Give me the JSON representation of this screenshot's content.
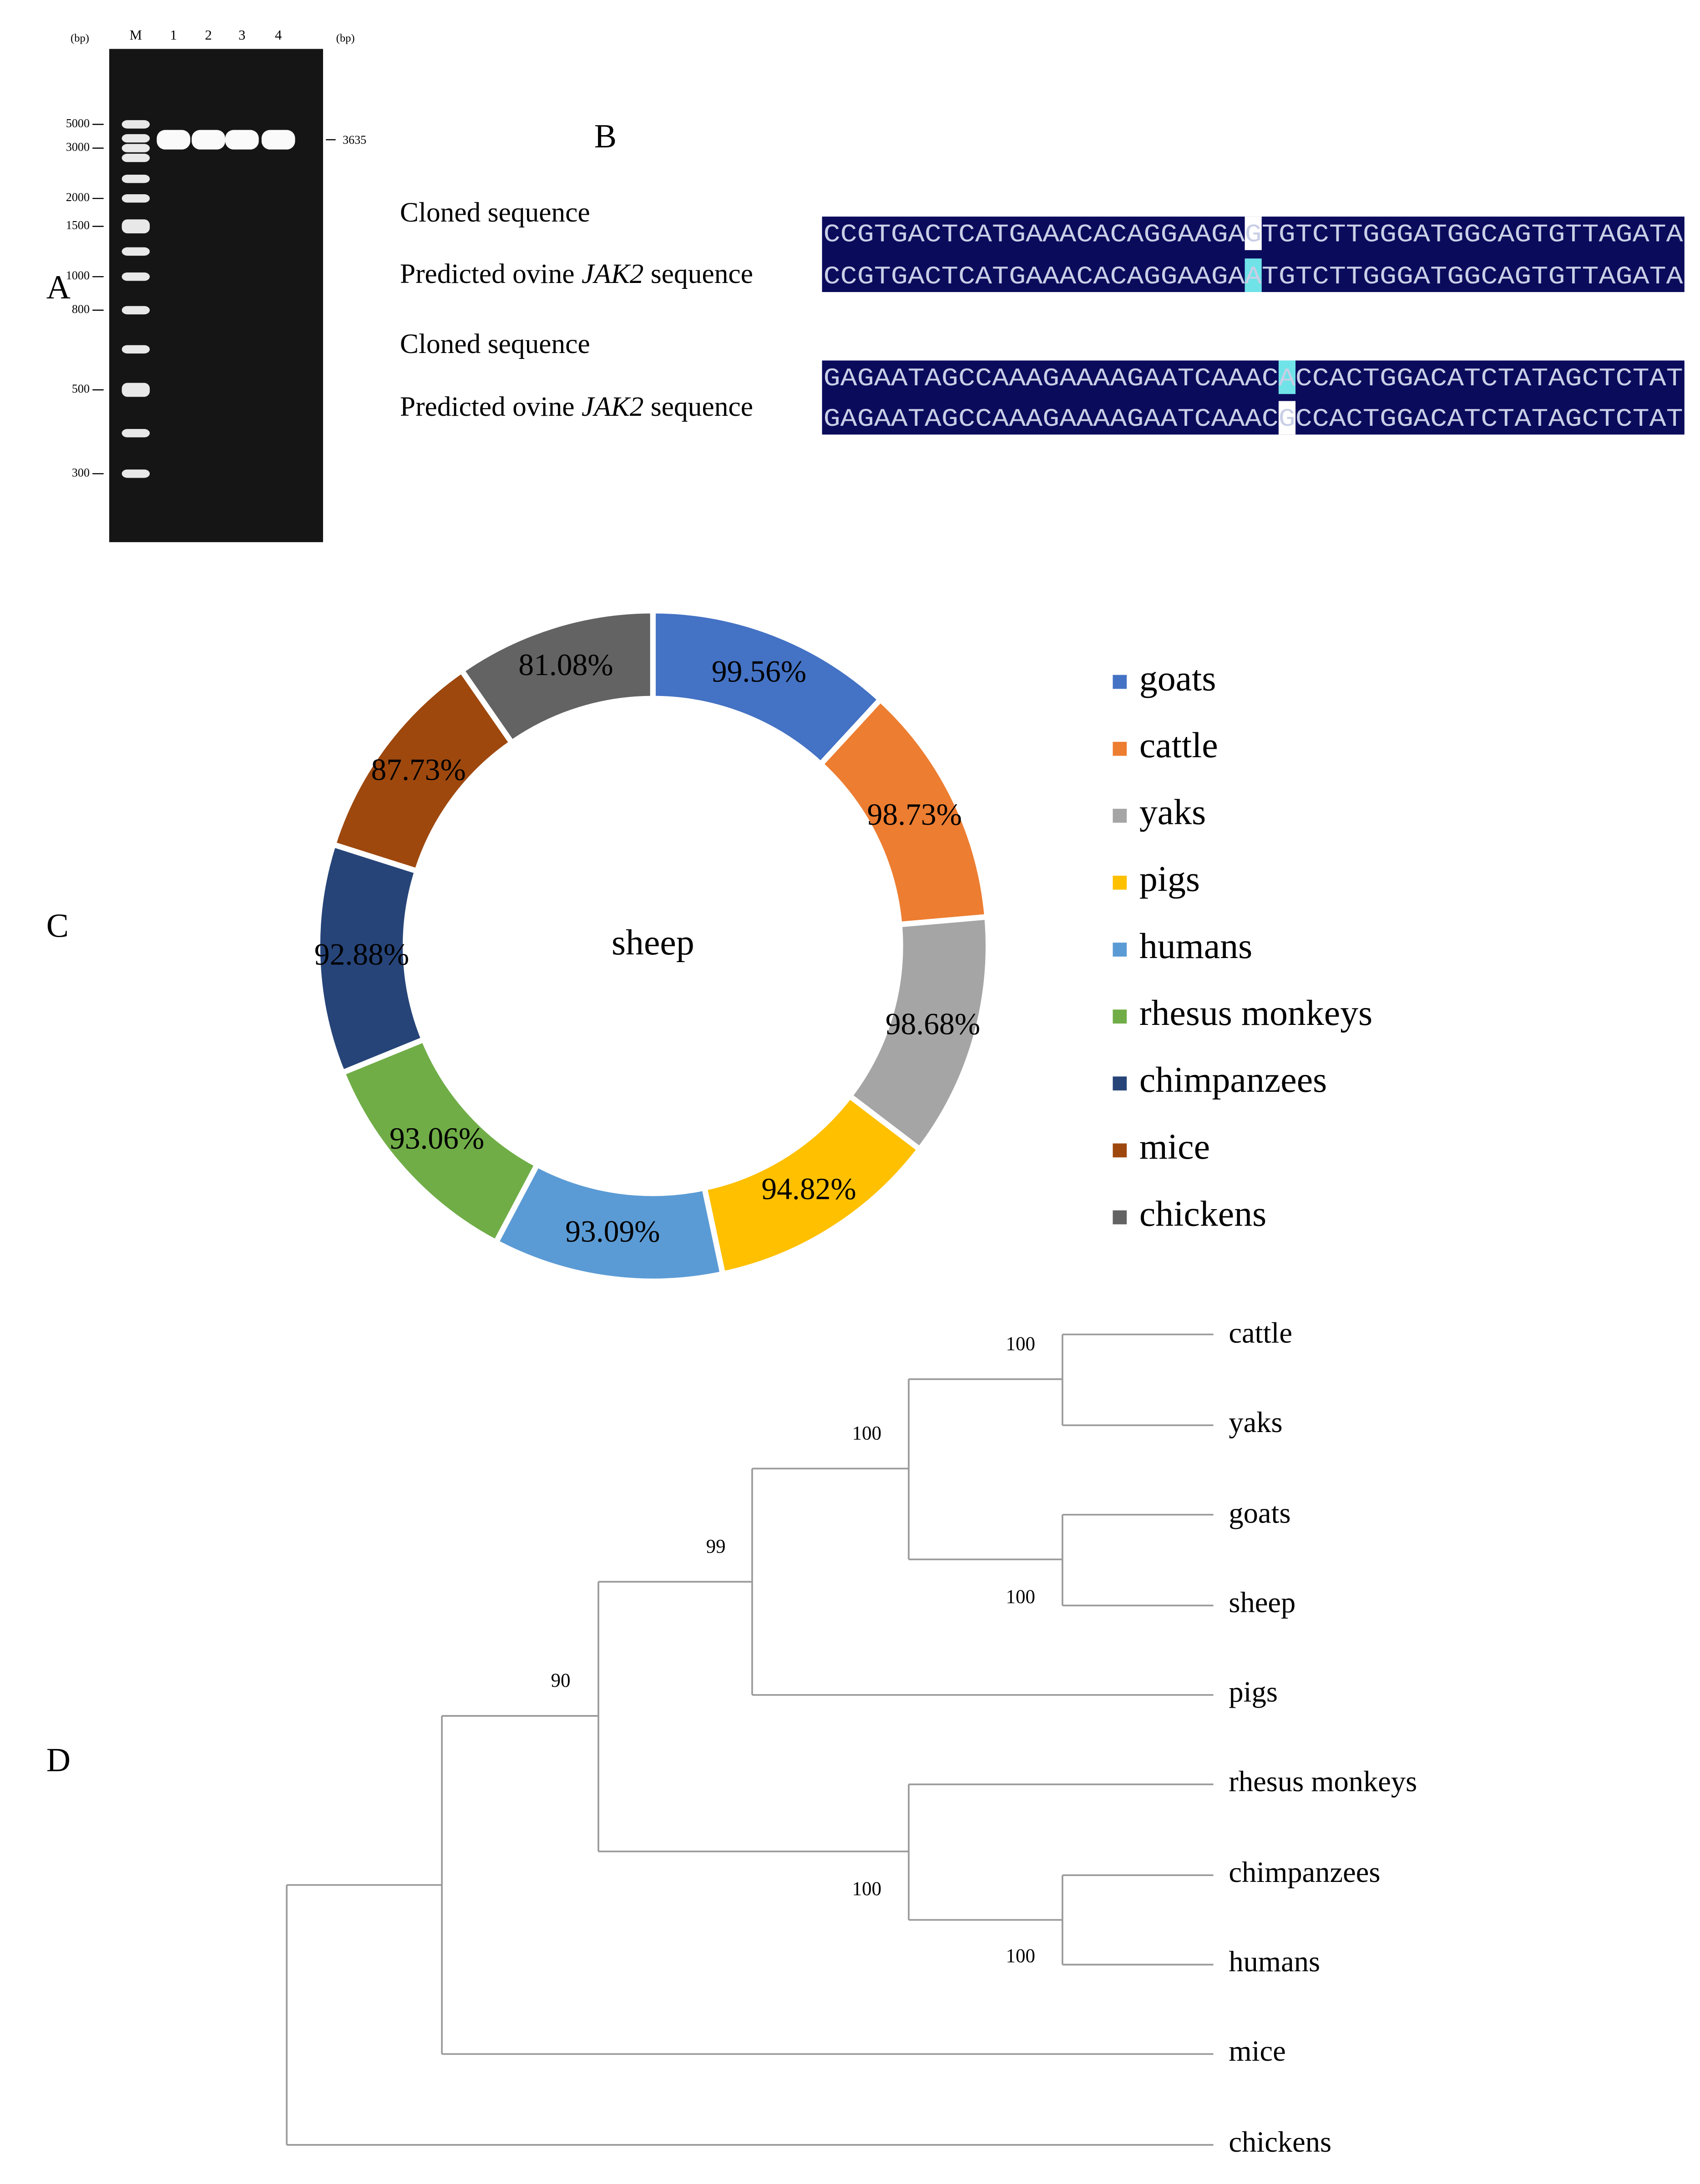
{
  "panels": {
    "a": "A",
    "b": "B",
    "c": "C",
    "d": "D"
  },
  "gel": {
    "unit_left": "(bp)",
    "unit_right": "(bp)",
    "lanes": [
      "M",
      "1",
      "2",
      "3",
      "4"
    ],
    "ladder": [
      5000,
      3000,
      2000,
      1500,
      1000,
      800,
      500,
      300
    ],
    "product_size": 3635
  },
  "alignment": {
    "blocks": [
      {
        "cloned": {
          "label": "Cloned sequence",
          "sequence": "CCGTGACTCATGAAACACAGGAAGAGTGTCTTGGGATGGCAGTGTTAGATA"
        },
        "predicted": {
          "prefix": "Predicted ovine",
          "gene": "JAK2",
          "suffix": "sequence",
          "sequence": "CCGTGACTCATGAAACACAGGAAGAATGTCTTGGGATGGCAGTGTTAGATA"
        }
      },
      {
        "cloned": {
          "label": "Cloned sequence",
          "sequence": "GAGAATAGCCAAAGAAAAGAATCAAACACCACTGGACATCTATAGCTCTAT"
        },
        "predicted": {
          "prefix": "Predicted ovine",
          "gene": "JAK2",
          "suffix": "sequence",
          "sequence": "GAGAATAGCCAAAGAAAAGAATCAAACGCCACTGGACATCTATAGCTCTAT"
        }
      }
    ]
  },
  "chart_data": {
    "type": "donut",
    "center_label": "sheep",
    "categories": [
      "goats",
      "cattle",
      "yaks",
      "pigs",
      "humans",
      "rhesus monkeys",
      "chimpanzees",
      "mice",
      "chickens"
    ],
    "values": [
      99.56,
      98.73,
      98.68,
      94.82,
      93.09,
      93.06,
      92.88,
      87.73,
      81.08
    ],
    "value_labels": [
      "99.56%",
      "98.73%",
      "98.68%",
      "94.82%",
      "93.09%",
      "93.06%",
      "92.88%",
      "87.73%",
      "81.08%"
    ],
    "colors": [
      "#4472c4",
      "#ed7d31",
      "#a5a5a5",
      "#ffc000",
      "#5b9bd5",
      "#70ad47",
      "#264478",
      "#9e480e",
      "#636363"
    ],
    "legend": "right"
  },
  "tree": {
    "leaves": [
      "cattle",
      "yaks",
      "goats",
      "sheep",
      "pigs",
      "rhesus monkeys",
      "chimpanzees",
      "humans",
      "mice",
      "chickens"
    ],
    "bootstrap": [
      100,
      100,
      99,
      100,
      90,
      100,
      100
    ]
  }
}
